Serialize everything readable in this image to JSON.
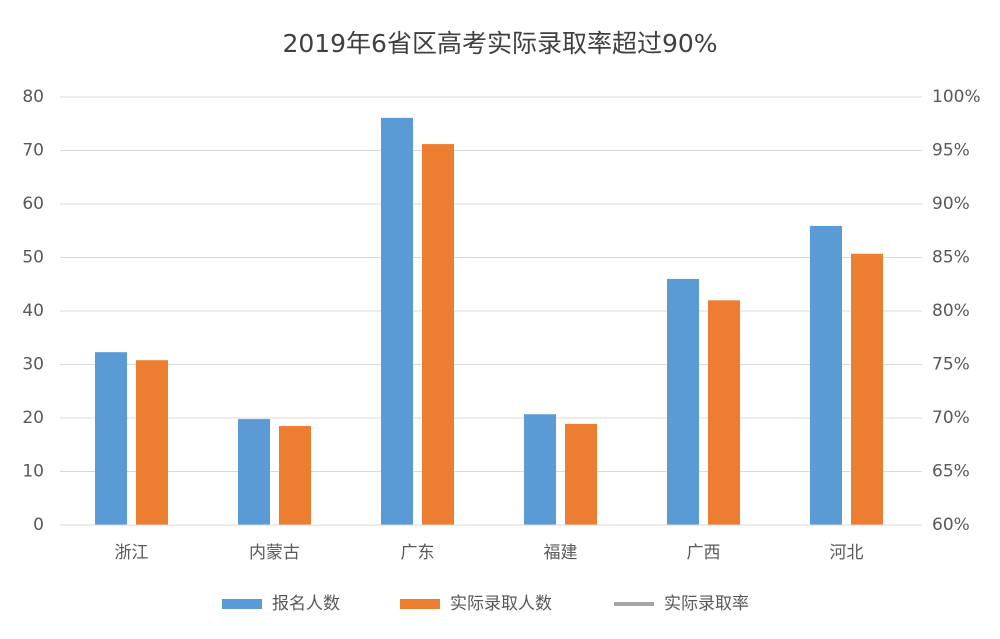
{
  "chart_data": {
    "type": "bar",
    "title": "2019年6省区高考实际录取率超过90%",
    "categories": [
      "浙江",
      "内蒙古",
      "广东",
      "福建",
      "广西",
      "河北"
    ],
    "series": [
      {
        "name": "报名人数",
        "color": "#5b9bd5",
        "values": [
          32.3,
          19.8,
          76.1,
          20.7,
          46,
          55.9
        ]
      },
      {
        "name": "实际录取人数",
        "color": "#ed7d31",
        "values": [
          30.8,
          18.5,
          71.2,
          18.9,
          42,
          50.7
        ]
      },
      {
        "name": "实际录取率",
        "color": "#a5a5a5",
        "type": "line",
        "axis": "y2",
        "values": [
          null,
          null,
          null,
          null,
          null,
          null
        ]
      }
    ],
    "ylim": [
      0,
      80
    ],
    "yticks": [
      0,
      10,
      20,
      30,
      40,
      50,
      60,
      70,
      80
    ],
    "y2lim": [
      60,
      100
    ],
    "y2ticks": [
      {
        "value": 60,
        "label": "60%"
      },
      {
        "value": 65,
        "label": "65%"
      },
      {
        "value": 70,
        "label": "70%"
      },
      {
        "value": 75,
        "label": "75%"
      },
      {
        "value": 80,
        "label": "80%"
      },
      {
        "value": 85,
        "label": "85%"
      },
      {
        "value": 90,
        "label": "90%"
      },
      {
        "value": 95,
        "label": "95%"
      },
      {
        "value": 100,
        "label": "100%"
      }
    ],
    "grid": true,
    "legend": "bottom"
  }
}
